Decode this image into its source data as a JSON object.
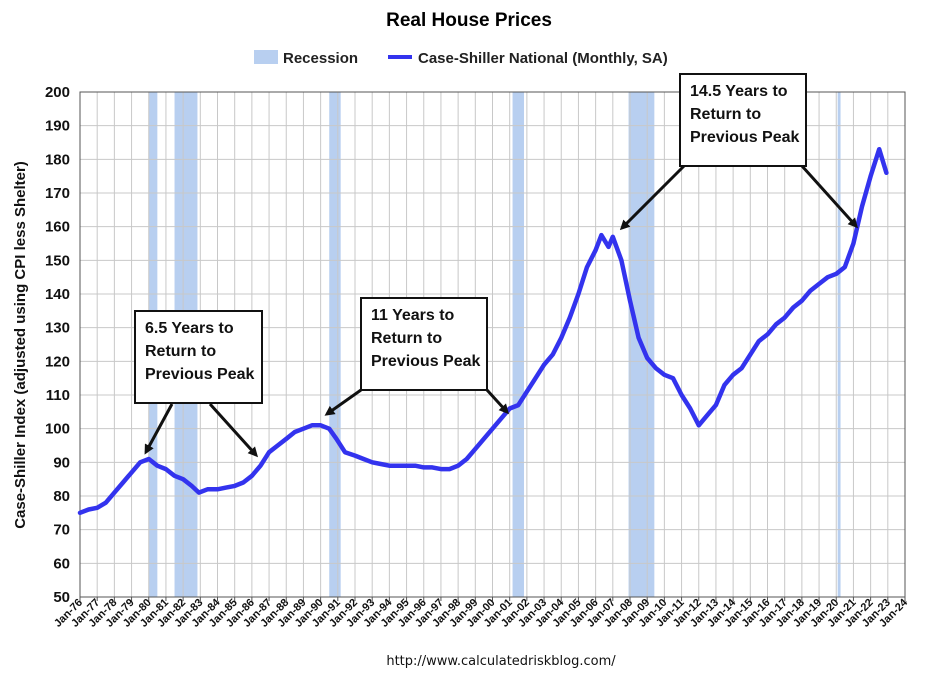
{
  "chart_data": {
    "type": "line",
    "title": "Real House Prices",
    "ylabel": "Case-Shiller Index (adjusted using CPI less Shelter)",
    "xlabel": "",
    "ylim": [
      50,
      200
    ],
    "yticks": [
      50,
      60,
      70,
      80,
      90,
      100,
      110,
      120,
      130,
      140,
      150,
      160,
      170,
      180,
      190,
      200
    ],
    "xtick_labels": [
      "Jan-76",
      "Jan-77",
      "Jan-78",
      "Jan-79",
      "Jan-80",
      "Jan-81",
      "Jan-82",
      "Jan-83",
      "Jan-84",
      "Jan-85",
      "Jan-86",
      "Jan-87",
      "Jan-88",
      "Jan-89",
      "Jan-90",
      "Jan-91",
      "Jan-92",
      "Jan-93",
      "Jan-94",
      "Jan-95",
      "Jan-96",
      "Jan-97",
      "Jan-98",
      "Jan-99",
      "Jan-00",
      "Jan-01",
      "Jan-02",
      "Jan-03",
      "Jan-04",
      "Jan-05",
      "Jan-06",
      "Jan-07",
      "Jan-08",
      "Jan-09",
      "Jan-10",
      "Jan-11",
      "Jan-12",
      "Jan-13",
      "Jan-14",
      "Jan-15",
      "Jan-16",
      "Jan-17",
      "Jan-18",
      "Jan-19",
      "Jan-20",
      "Jan-21",
      "Jan-22",
      "Jan-23",
      "Jan-24"
    ],
    "grid": true,
    "legend_position": "top-center",
    "series": [
      {
        "name": "Case-Shiller National (Monthly, SA)",
        "color": "#3333ee",
        "points": [
          [
            "1976-01",
            75
          ],
          [
            "1976-07",
            76
          ],
          [
            "1977-01",
            76.5
          ],
          [
            "1977-07",
            78
          ],
          [
            "1978-01",
            81
          ],
          [
            "1978-07",
            84
          ],
          [
            "1979-01",
            87
          ],
          [
            "1979-07",
            90
          ],
          [
            "1980-01",
            91
          ],
          [
            "1980-07",
            89
          ],
          [
            "1981-01",
            88
          ],
          [
            "1981-07",
            86
          ],
          [
            "1982-01",
            85
          ],
          [
            "1982-07",
            83
          ],
          [
            "1982-12",
            81
          ],
          [
            "1983-06",
            82
          ],
          [
            "1984-01",
            82
          ],
          [
            "1984-07",
            82.5
          ],
          [
            "1985-01",
            83
          ],
          [
            "1985-07",
            84
          ],
          [
            "1986-01",
            86
          ],
          [
            "1986-07",
            89
          ],
          [
            "1987-01",
            93
          ],
          [
            "1987-07",
            95
          ],
          [
            "1988-01",
            97
          ],
          [
            "1988-07",
            99
          ],
          [
            "1989-01",
            100
          ],
          [
            "1989-07",
            101
          ],
          [
            "1990-01",
            101
          ],
          [
            "1990-07",
            100
          ],
          [
            "1990-12",
            97
          ],
          [
            "1991-06",
            93
          ],
          [
            "1992-01",
            92
          ],
          [
            "1992-07",
            91
          ],
          [
            "1993-01",
            90
          ],
          [
            "1993-07",
            89.5
          ],
          [
            "1994-01",
            89
          ],
          [
            "1994-07",
            89
          ],
          [
            "1995-01",
            89
          ],
          [
            "1995-07",
            89
          ],
          [
            "1996-01",
            88.5
          ],
          [
            "1996-07",
            88.5
          ],
          [
            "1997-01",
            88
          ],
          [
            "1997-07",
            88
          ],
          [
            "1998-01",
            89
          ],
          [
            "1998-07",
            91
          ],
          [
            "1999-01",
            94
          ],
          [
            "1999-07",
            97
          ],
          [
            "2000-01",
            100
          ],
          [
            "2000-07",
            103
          ],
          [
            "2001-01",
            106
          ],
          [
            "2001-07",
            107
          ],
          [
            "2002-01",
            111
          ],
          [
            "2002-07",
            115
          ],
          [
            "2003-01",
            119
          ],
          [
            "2003-07",
            122
          ],
          [
            "2004-01",
            127
          ],
          [
            "2004-07",
            133
          ],
          [
            "2005-01",
            140
          ],
          [
            "2005-07",
            148
          ],
          [
            "2006-01",
            153
          ],
          [
            "2006-05",
            157.5
          ],
          [
            "2006-10",
            154
          ],
          [
            "2007-01",
            157
          ],
          [
            "2007-07",
            150
          ],
          [
            "2008-01",
            138
          ],
          [
            "2008-07",
            127
          ],
          [
            "2008-10",
            124
          ],
          [
            "2009-01",
            121
          ],
          [
            "2009-07",
            118
          ],
          [
            "2010-01",
            116
          ],
          [
            "2010-07",
            115
          ],
          [
            "2011-01",
            110
          ],
          [
            "2011-07",
            106
          ],
          [
            "2012-01",
            101
          ],
          [
            "2012-07",
            104
          ],
          [
            "2013-01",
            107
          ],
          [
            "2013-07",
            113
          ],
          [
            "2014-01",
            116
          ],
          [
            "2014-07",
            118
          ],
          [
            "2015-01",
            122
          ],
          [
            "2015-07",
            126
          ],
          [
            "2016-01",
            128
          ],
          [
            "2016-07",
            131
          ],
          [
            "2017-01",
            133
          ],
          [
            "2017-07",
            136
          ],
          [
            "2018-01",
            138
          ],
          [
            "2018-07",
            141
          ],
          [
            "2019-01",
            143
          ],
          [
            "2019-07",
            145
          ],
          [
            "2020-01",
            146
          ],
          [
            "2020-07",
            148
          ],
          [
            "2021-01",
            155
          ],
          [
            "2021-07",
            166
          ],
          [
            "2022-01",
            175
          ],
          [
            "2022-07",
            183
          ],
          [
            "2022-12",
            176
          ]
        ]
      }
    ],
    "recession": {
      "name": "Recession",
      "color": "#b8cff0",
      "periods": [
        [
          "1980-01",
          "1980-07"
        ],
        [
          "1981-07",
          "1982-11"
        ],
        [
          "1990-07",
          "1991-03"
        ],
        [
          "2001-03",
          "2001-11"
        ],
        [
          "2007-12",
          "2009-06"
        ],
        [
          "2020-02",
          "2020-04"
        ]
      ]
    },
    "annotations": [
      {
        "text": [
          "6.5 Years to",
          "Return to",
          "Previous Peak"
        ]
      },
      {
        "text": [
          "11 Years to",
          "Return to",
          "Previous Peak"
        ]
      },
      {
        "text": [
          "14.5 Years to",
          "Return to",
          "Previous Peak"
        ]
      }
    ],
    "source": "http://www.calculatedriskblog.com/"
  }
}
